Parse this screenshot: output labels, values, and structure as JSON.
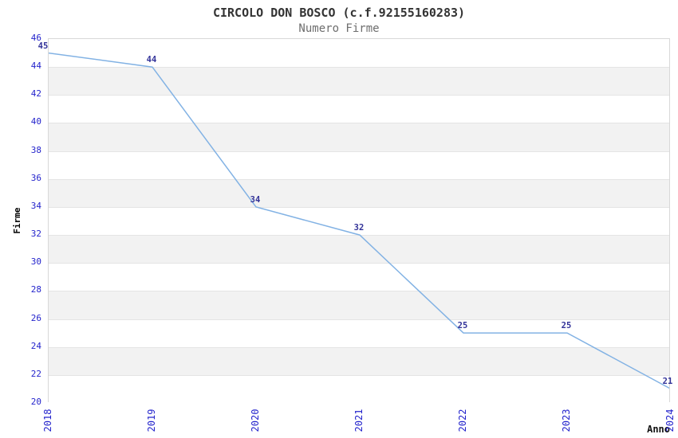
{
  "chart_data": {
    "type": "line",
    "title": "CIRCOLO DON BOSCO (c.f.92155160283)",
    "subtitle": "Numero Firme",
    "xlabel": "Anno",
    "ylabel": "Firme",
    "x": [
      "2018",
      "2019",
      "2020",
      "2021",
      "2022",
      "2023",
      "2024"
    ],
    "series": [
      {
        "name": "Numero Firme",
        "values": [
          45,
          44,
          34,
          32,
          25,
          25,
          21
        ]
      }
    ],
    "point_labels": [
      "45",
      "44",
      "34",
      "32",
      "25",
      "25",
      "21"
    ],
    "ylim": [
      20,
      46
    ],
    "ytick_step": 2,
    "yticks": [
      46,
      44,
      42,
      40,
      38,
      36,
      34,
      32,
      30,
      28,
      26,
      24,
      22,
      20
    ],
    "grid": "horizontal",
    "legend": "none",
    "colors": {
      "line": "#82b2e4",
      "tick_label": "#2424cc",
      "data_label": "#333399",
      "band_gray": "#f2f2f2",
      "gridline": "#e4e4e4",
      "plot_border": "#d8d8d8",
      "title": "#333333",
      "subtitle": "#6e6e6e",
      "axis_label": "#000000"
    }
  }
}
